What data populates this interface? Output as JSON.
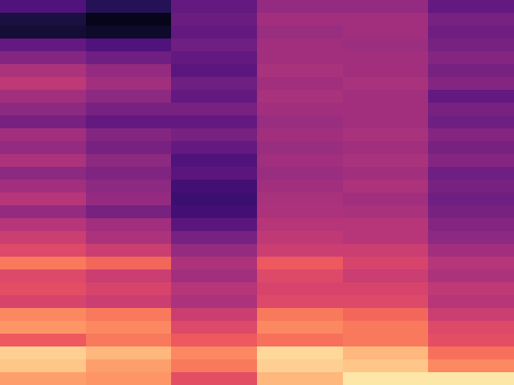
{
  "chart_data": {
    "type": "heatmap",
    "color": "magma",
    "tick_labels": false,
    "zlim": [
      0,
      1
    ],
    "cells": [
      [
        0.25,
        0.15,
        0.3,
        0.42,
        0.42,
        0.3
      ],
      [
        0.12,
        0.05,
        0.32,
        0.45,
        0.45,
        0.35
      ],
      [
        0.1,
        0.08,
        0.3,
        0.43,
        0.45,
        0.33
      ],
      [
        0.3,
        0.25,
        0.33,
        0.45,
        0.44,
        0.35
      ],
      [
        0.38,
        0.33,
        0.3,
        0.45,
        0.45,
        0.38
      ],
      [
        0.48,
        0.42,
        0.28,
        0.47,
        0.45,
        0.35
      ],
      [
        0.52,
        0.45,
        0.33,
        0.45,
        0.47,
        0.38
      ],
      [
        0.45,
        0.4,
        0.3,
        0.47,
        0.45,
        0.3
      ],
      [
        0.4,
        0.35,
        0.35,
        0.45,
        0.45,
        0.35
      ],
      [
        0.35,
        0.3,
        0.3,
        0.43,
        0.45,
        0.33
      ],
      [
        0.45,
        0.38,
        0.35,
        0.45,
        0.47,
        0.38
      ],
      [
        0.42,
        0.35,
        0.3,
        0.43,
        0.45,
        0.35
      ],
      [
        0.48,
        0.4,
        0.25,
        0.45,
        0.47,
        0.38
      ],
      [
        0.4,
        0.37,
        0.28,
        0.43,
        0.45,
        0.33
      ],
      [
        0.45,
        0.4,
        0.22,
        0.45,
        0.48,
        0.35
      ],
      [
        0.5,
        0.42,
        0.2,
        0.47,
        0.45,
        0.33
      ],
      [
        0.42,
        0.35,
        0.22,
        0.48,
        0.47,
        0.35
      ],
      [
        0.5,
        0.45,
        0.28,
        0.5,
        0.5,
        0.38
      ],
      [
        0.55,
        0.48,
        0.35,
        0.52,
        0.5,
        0.4
      ],
      [
        0.6,
        0.55,
        0.42,
        0.55,
        0.55,
        0.45
      ],
      [
        0.72,
        0.68,
        0.48,
        0.65,
        0.58,
        0.5
      ],
      [
        0.6,
        0.55,
        0.45,
        0.6,
        0.55,
        0.48
      ],
      [
        0.62,
        0.58,
        0.5,
        0.58,
        0.58,
        0.52
      ],
      [
        0.58,
        0.55,
        0.48,
        0.6,
        0.6,
        0.5
      ],
      [
        0.75,
        0.72,
        0.55,
        0.72,
        0.68,
        0.55
      ],
      [
        0.78,
        0.75,
        0.6,
        0.75,
        0.72,
        0.6
      ],
      [
        0.65,
        0.72,
        0.65,
        0.7,
        0.72,
        0.62
      ],
      [
        0.9,
        0.85,
        0.75,
        0.92,
        0.85,
        0.7
      ],
      [
        0.88,
        0.8,
        0.72,
        0.9,
        0.88,
        0.75
      ],
      [
        0.8,
        0.78,
        0.62,
        0.85,
        0.95,
        0.95
      ]
    ]
  }
}
